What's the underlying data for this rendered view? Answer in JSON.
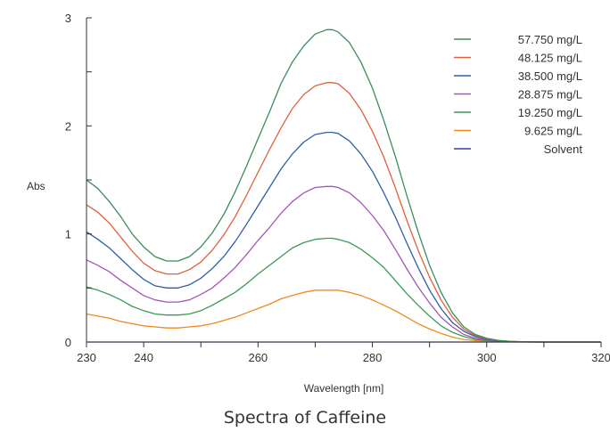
{
  "caption": "Spectra of Caffeine",
  "chart_data": {
    "type": "line",
    "title": "",
    "xlabel": "Wavelength [nm]",
    "ylabel": "Abs",
    "xlim": [
      230,
      320
    ],
    "ylim": [
      0,
      3
    ],
    "x_ticks": [
      "230",
      "240",
      "260",
      "280",
      "300",
      "320"
    ],
    "y_ticks": [
      "0",
      "1",
      "2",
      "3"
    ],
    "grid": false,
    "legend_position": "top-right",
    "x": [
      230,
      232,
      234,
      236,
      238,
      240,
      242,
      244,
      246,
      248,
      250,
      252,
      254,
      256,
      258,
      260,
      262,
      264,
      266,
      268,
      270,
      272,
      273,
      274,
      276,
      278,
      280,
      282,
      284,
      286,
      288,
      290,
      292,
      294,
      296,
      298,
      300,
      302,
      304,
      306,
      308,
      310,
      315,
      320
    ],
    "series": [
      {
        "name": "57.750 mg/L",
        "color": "#3a8d5a",
        "values": [
          1.5,
          1.42,
          1.3,
          1.16,
          1.0,
          0.88,
          0.79,
          0.75,
          0.75,
          0.79,
          0.88,
          1.01,
          1.18,
          1.39,
          1.63,
          1.88,
          2.13,
          2.39,
          2.59,
          2.74,
          2.85,
          2.89,
          2.89,
          2.87,
          2.77,
          2.59,
          2.35,
          2.05,
          1.72,
          1.36,
          1.02,
          0.71,
          0.46,
          0.27,
          0.14,
          0.07,
          0.035,
          0.015,
          0.007,
          0.003,
          0.001,
          0.0,
          0.0,
          0.0
        ]
      },
      {
        "name": "48.125 mg/L",
        "color": "#e2603c",
        "values": [
          1.27,
          1.2,
          1.1,
          0.97,
          0.84,
          0.73,
          0.66,
          0.63,
          0.63,
          0.67,
          0.74,
          0.85,
          0.99,
          1.16,
          1.36,
          1.57,
          1.78,
          1.98,
          2.16,
          2.29,
          2.37,
          2.4,
          2.4,
          2.39,
          2.3,
          2.15,
          1.95,
          1.71,
          1.43,
          1.13,
          0.85,
          0.6,
          0.39,
          0.23,
          0.12,
          0.06,
          0.03,
          0.013,
          0.006,
          0.002,
          0.001,
          0.0,
          0.0,
          0.0
        ]
      },
      {
        "name": "38.500 mg/L",
        "color": "#2f5ea8",
        "values": [
          1.02,
          0.95,
          0.87,
          0.77,
          0.67,
          0.58,
          0.52,
          0.5,
          0.5,
          0.53,
          0.59,
          0.68,
          0.79,
          0.93,
          1.09,
          1.26,
          1.43,
          1.6,
          1.74,
          1.85,
          1.92,
          1.94,
          1.94,
          1.93,
          1.86,
          1.74,
          1.58,
          1.38,
          1.16,
          0.92,
          0.69,
          0.48,
          0.31,
          0.18,
          0.1,
          0.05,
          0.025,
          0.01,
          0.005,
          0.002,
          0.001,
          0.0,
          0.0,
          0.0
        ]
      },
      {
        "name": "28.875 mg/L",
        "color": "#a256b8",
        "values": [
          0.76,
          0.71,
          0.65,
          0.57,
          0.5,
          0.43,
          0.39,
          0.37,
          0.37,
          0.39,
          0.44,
          0.5,
          0.59,
          0.69,
          0.81,
          0.94,
          1.06,
          1.19,
          1.3,
          1.38,
          1.43,
          1.44,
          1.44,
          1.43,
          1.38,
          1.29,
          1.17,
          1.03,
          0.86,
          0.68,
          0.51,
          0.36,
          0.23,
          0.14,
          0.07,
          0.035,
          0.018,
          0.008,
          0.003,
          0.001,
          0.0,
          0.0,
          0.0,
          0.0
        ]
      },
      {
        "name": "19.250 mg/L",
        "color": "#3a9a55",
        "values": [
          0.51,
          0.48,
          0.44,
          0.39,
          0.33,
          0.29,
          0.26,
          0.25,
          0.25,
          0.26,
          0.29,
          0.34,
          0.4,
          0.46,
          0.54,
          0.63,
          0.71,
          0.79,
          0.87,
          0.92,
          0.95,
          0.96,
          0.96,
          0.95,
          0.92,
          0.86,
          0.78,
          0.69,
          0.57,
          0.45,
          0.34,
          0.24,
          0.15,
          0.09,
          0.05,
          0.024,
          0.012,
          0.005,
          0.002,
          0.001,
          0.0,
          0.0,
          0.0,
          0.0
        ]
      },
      {
        "name": "9.625 mg/L",
        "color": "#ef8a1c",
        "values": [
          0.26,
          0.24,
          0.22,
          0.19,
          0.17,
          0.15,
          0.14,
          0.13,
          0.13,
          0.14,
          0.15,
          0.17,
          0.2,
          0.23,
          0.27,
          0.31,
          0.35,
          0.4,
          0.43,
          0.46,
          0.48,
          0.48,
          0.48,
          0.48,
          0.46,
          0.43,
          0.39,
          0.34,
          0.29,
          0.23,
          0.17,
          0.12,
          0.08,
          0.045,
          0.024,
          0.012,
          0.006,
          0.003,
          0.001,
          0.0,
          0.0,
          0.0,
          0.0,
          0.0
        ]
      },
      {
        "name": "Solvent",
        "color": "#3b3fa3",
        "values": [
          0.0,
          0.0,
          0.0,
          0.0,
          0.0,
          0.0,
          0.0,
          0.0,
          0.0,
          0.0,
          0.0,
          0.0,
          0.0,
          0.0,
          0.0,
          0.0,
          0.0,
          0.0,
          0.0,
          0.0,
          0.0,
          0.0,
          0.0,
          0.0,
          0.0,
          0.0,
          0.0,
          0.0,
          0.0,
          0.0,
          0.0,
          0.0,
          0.0,
          0.0,
          0.0,
          0.0,
          0.0,
          0.0,
          0.0,
          0.0,
          0.0,
          0.0,
          0.0,
          0.0
        ]
      }
    ]
  }
}
